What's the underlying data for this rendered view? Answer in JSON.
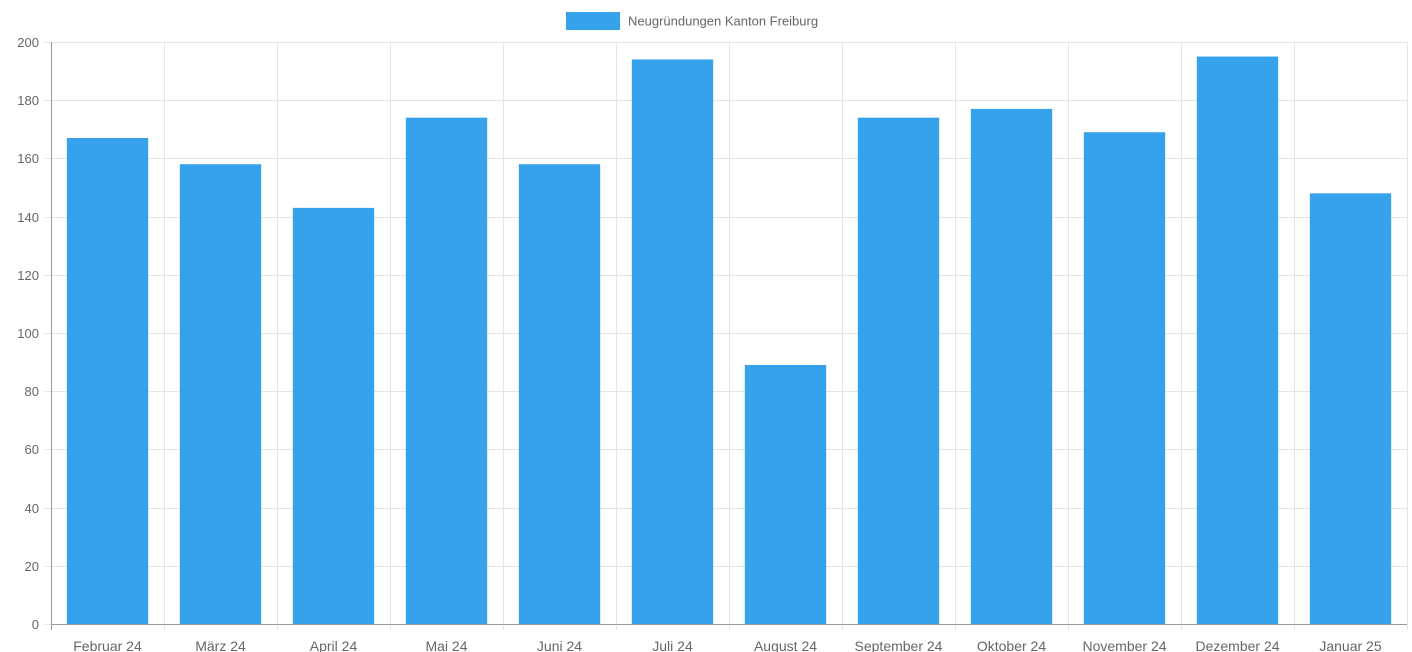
{
  "chart_data": {
    "type": "bar",
    "categories": [
      "Februar 24",
      "März 24",
      "April 24",
      "Mai 24",
      "Juni 24",
      "Juli 24",
      "August 24",
      "September 24",
      "Oktober 24",
      "November 24",
      "Dezember 24",
      "Januar 25"
    ],
    "series": [
      {
        "name": "Neugründungen Kanton Freiburg",
        "values": [
          167,
          158,
          143,
          174,
          158,
          194,
          89,
          174,
          177,
          169,
          195,
          148
        ],
        "color": "#36a2eb"
      }
    ],
    "ylim": [
      0,
      200
    ],
    "yticks": [
      0,
      20,
      40,
      60,
      80,
      100,
      120,
      140,
      160,
      180,
      200
    ],
    "grid": true,
    "legend": "top-center",
    "colors": {
      "grid": "#e5e5e5",
      "axis": "#999999",
      "tick_text": "#666666"
    }
  }
}
